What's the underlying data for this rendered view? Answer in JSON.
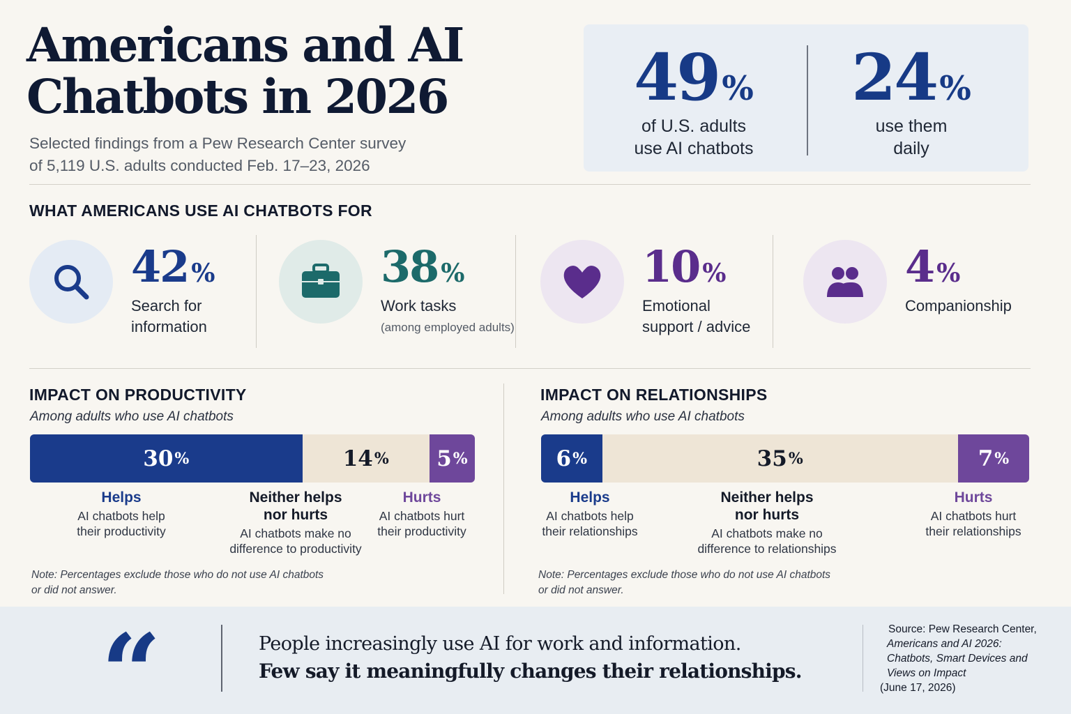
{
  "header": {
    "title_line1": "Americans and AI",
    "title_line2": "Chatbots in 2026",
    "subtitle_line1": "Selected findings from a Pew Research Center survey",
    "subtitle_line2": "of 5,119 U.S. adults conducted Feb. 17–23, 2026"
  },
  "stats": [
    {
      "value": "49",
      "unit": "%",
      "label_line1": "of U.S. adults",
      "label_line2": "use AI chatbots"
    },
    {
      "value": "24",
      "unit": "%",
      "label_line1": "use them",
      "label_line2": "daily"
    }
  ],
  "uses": {
    "title": "WHAT AMERICANS USE AI CHATBOTS FOR",
    "items": [
      {
        "value": "42",
        "unit": "%",
        "label_line1": "Search for",
        "label_line2": "information",
        "note": "",
        "icon": "search-icon",
        "color": "#1a3b8b",
        "bg": "#e4ebf4"
      },
      {
        "value": "38",
        "unit": "%",
        "label_line1": "Work tasks",
        "label_line2": "",
        "note": "(among employed adults)",
        "icon": "briefcase-icon",
        "color": "#1c6a6a",
        "bg": "#e0ebe8"
      },
      {
        "value": "10",
        "unit": "%",
        "label_line1": "Emotional",
        "label_line2": "support / advice",
        "note": "",
        "icon": "heart-icon",
        "color": "#5a2d8c",
        "bg": "#ede6f1"
      },
      {
        "value": "4",
        "unit": "%",
        "label_line1": "Companionship",
        "label_line2": "",
        "note": "",
        "icon": "people-icon",
        "color": "#5a2d8c",
        "bg": "#ede6f1"
      }
    ]
  },
  "chart_data": [
    {
      "type": "bar",
      "orientation": "horizontal-stacked",
      "title": "IMPACT ON PRODUCTIVITY",
      "subtitle": "Among adults who use AI chatbots",
      "categories": [
        "Helps",
        "Neither helps nor hurts",
        "Hurts"
      ],
      "values": [
        30,
        14,
        5
      ],
      "unit": "%",
      "descriptions": [
        "AI chatbots help their productivity",
        "AI chatbots make no difference to productivity",
        "AI chatbots hurt their productivity"
      ],
      "colors": [
        "#1a3b8b",
        "#eee5d6",
        "#6e479b"
      ],
      "note_line1": "Note: Percentages exclude those who do not use AI chatbots",
      "note_line2": "or did not answer."
    },
    {
      "type": "bar",
      "orientation": "horizontal-stacked",
      "title": "IMPACT ON RELATIONSHIPS",
      "subtitle": "Among adults who use AI chatbots",
      "categories": [
        "Helps",
        "Neither helps nor hurts",
        "Hurts"
      ],
      "values": [
        6,
        35,
        7
      ],
      "unit": "%",
      "descriptions": [
        "AI chatbots help their relationships",
        "AI chatbots make no difference to relationships",
        "AI chatbots hurt their relationships"
      ],
      "colors": [
        "#1a3b8b",
        "#eee5d6",
        "#6e479b"
      ],
      "note_line1": "Note: Percentages exclude those who do not use AI chatbots",
      "note_line2": "or did not answer."
    }
  ],
  "bar_text": {
    "productivity": {
      "helps_desc_1": "AI chatbots help",
      "helps_desc_2": "their productivity",
      "neither_head_1": "Neither helps",
      "neither_head_2": "nor hurts",
      "neither_desc_1": "AI chatbots make no",
      "neither_desc_2": "difference to productivity",
      "hurts_desc_1": "AI chatbots hurt",
      "hurts_desc_2": "their productivity"
    },
    "relationships": {
      "helps_desc_1": "AI chatbots help",
      "helps_desc_2": "their relationships",
      "neither_head_1": "Neither helps",
      "neither_head_2": "nor hurts",
      "neither_desc_1": "AI chatbots make no",
      "neither_desc_2": "difference to relationships",
      "hurts_desc_1": "AI chatbots hurt",
      "hurts_desc_2": "their relationships"
    }
  },
  "footer": {
    "quote_mark": "“",
    "quote_line1": "People increasingly use AI for work and information.",
    "quote_line2": "Few say it meaningfully changes their relationships.",
    "source_org": "Source: Pew Research Center,",
    "source_title_1": "Americans and AI 2026:",
    "source_title_2": "Chatbots, Smart Devices and",
    "source_title_3": "Views on Impact",
    "source_date": "(June 17, 2026)"
  },
  "colors": {
    "navy": "#173a86",
    "teal": "#1c6a6a",
    "purple": "#5a2d8c",
    "beige": "#eee5d6"
  }
}
